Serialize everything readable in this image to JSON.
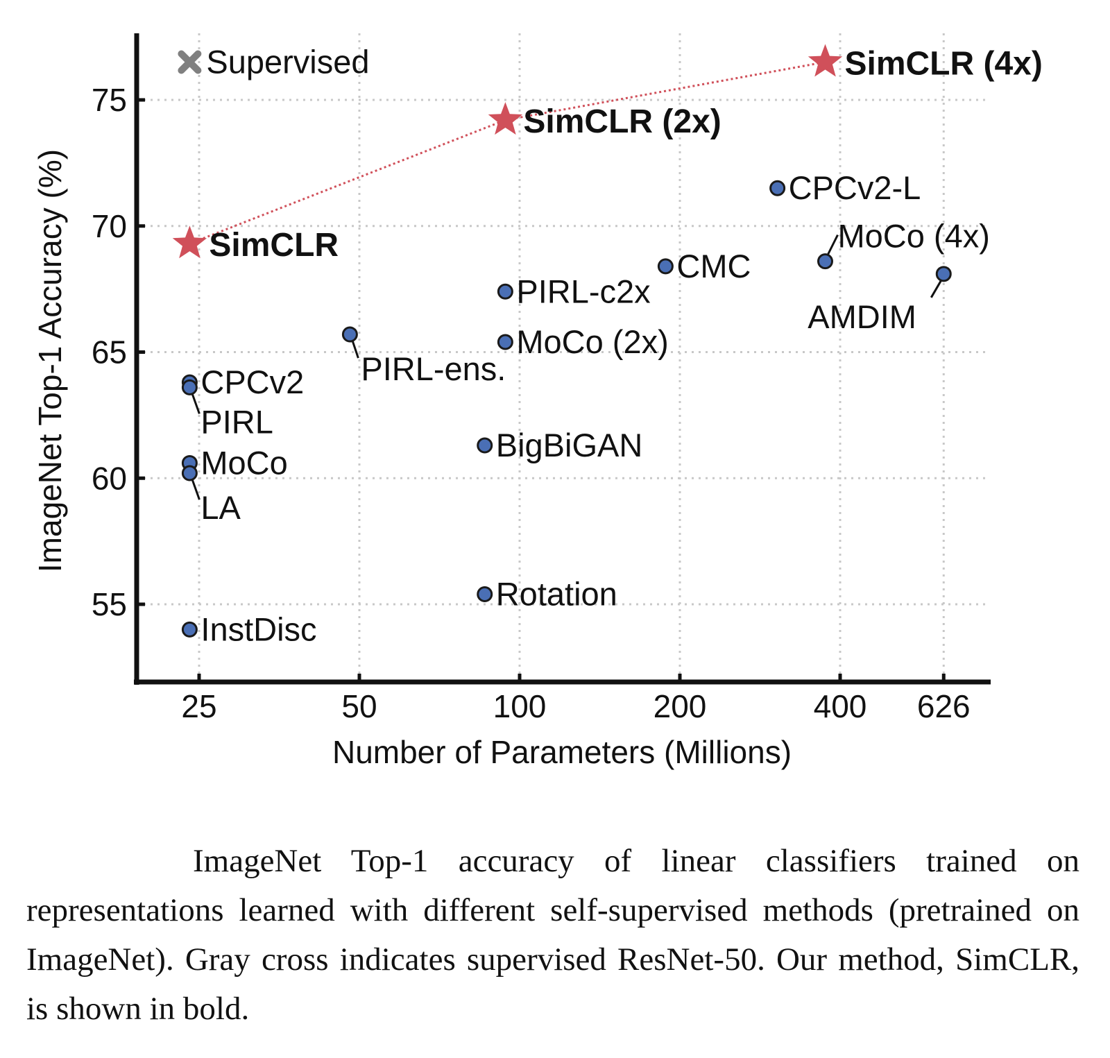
{
  "chart_data": {
    "type": "scatter",
    "xlabel": "Number of Parameters (Millions)",
    "ylabel": "ImageNet Top-1 Accuracy (%)",
    "xscale": "log",
    "xticks": [
      25,
      50,
      100,
      200,
      400,
      626
    ],
    "yticks": [
      55,
      60,
      65,
      70,
      75
    ],
    "xlim": [
      19,
      730
    ],
    "ylim": [
      52.2,
      78.2
    ],
    "grid": true,
    "colors": {
      "simclr": "#d0505a",
      "baseline": "#4a6fb5",
      "supervised": "#808080",
      "connector": "#d0505a"
    },
    "points": [
      {
        "label": "Supervised",
        "params": 24,
        "acc": 76.5,
        "group": "supervised"
      },
      {
        "label": "SimCLR",
        "params": 24,
        "acc": 69.3,
        "group": "simclr"
      },
      {
        "label": "SimCLR (2x)",
        "params": 94,
        "acc": 74.2,
        "group": "simclr"
      },
      {
        "label": "SimCLR (4x)",
        "params": 375,
        "acc": 76.5,
        "group": "simclr"
      },
      {
        "label": "CPCv2-L",
        "params": 305,
        "acc": 71.5,
        "group": "baseline"
      },
      {
        "label": "MoCo (4x)",
        "params": 375,
        "acc": 68.6,
        "group": "baseline"
      },
      {
        "label": "AMDIM",
        "params": 626,
        "acc": 68.1,
        "group": "baseline"
      },
      {
        "label": "CMC",
        "params": 188,
        "acc": 68.4,
        "group": "baseline"
      },
      {
        "label": "PIRL-c2x",
        "params": 94,
        "acc": 67.4,
        "group": "baseline"
      },
      {
        "label": "MoCo (2x)",
        "params": 94,
        "acc": 65.4,
        "group": "baseline"
      },
      {
        "label": "PIRL-ens.",
        "params": 48,
        "acc": 65.7,
        "group": "baseline"
      },
      {
        "label": "CPCv2",
        "params": 24,
        "acc": 63.8,
        "group": "baseline"
      },
      {
        "label": "PIRL",
        "params": 24,
        "acc": 63.6,
        "group": "baseline"
      },
      {
        "label": "MoCo",
        "params": 24,
        "acc": 60.6,
        "group": "baseline"
      },
      {
        "label": "LA",
        "params": 24,
        "acc": 60.2,
        "group": "baseline"
      },
      {
        "label": "BigBiGAN",
        "params": 86,
        "acc": 61.3,
        "group": "baseline"
      },
      {
        "label": "Rotation",
        "params": 86,
        "acc": 55.4,
        "group": "baseline"
      },
      {
        "label": "InstDisc",
        "params": 24,
        "acc": 54.0,
        "group": "baseline"
      }
    ]
  },
  "caption": "ImageNet Top-1 accuracy of linear classifiers trained on representations learned with different self-supervised methods (pretrained on ImageNet). Gray cross indicates supervised ResNet-50. Our method, SimCLR, is shown in bold."
}
